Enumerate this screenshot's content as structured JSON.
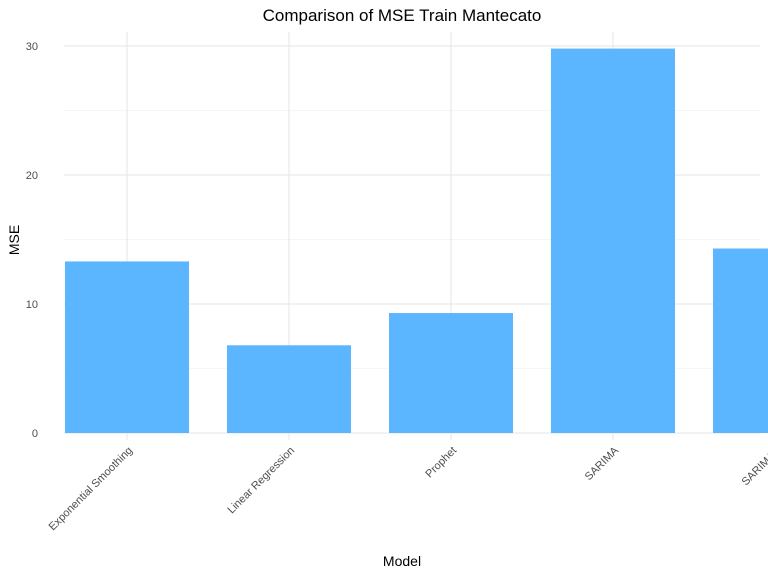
{
  "chart_data": {
    "type": "bar",
    "title": "Comparison of MSE Train Mantecato",
    "xlabel": "Model",
    "ylabel": "MSE",
    "categories": [
      "Exponential Smoothing",
      "Linear Regression",
      "Prophet",
      "SARIMA",
      "SARIMAX"
    ],
    "values": [
      13.3,
      6.8,
      9.3,
      29.8,
      14.3
    ],
    "ylim": [
      0,
      31
    ],
    "yticks": [
      "0",
      "10",
      "20",
      "30"
    ],
    "bar_color": "#5CB6FF",
    "grid": true,
    "legend": "none"
  }
}
